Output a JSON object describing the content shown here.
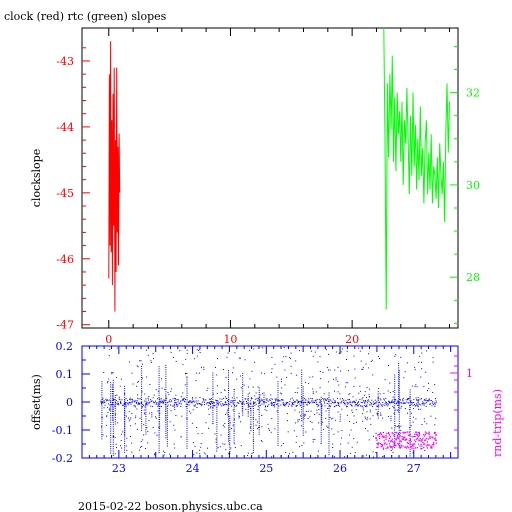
{
  "chart_data": [
    {
      "type": "line",
      "title": "clock (red) rtc (green) slopes",
      "ylabel": "clockslope",
      "x_ticks": [
        "0",
        "10",
        "20"
      ],
      "xlim": [
        -2.2,
        28.7
      ],
      "y_left": {
        "lim": [
          -47.05,
          -42.5
        ],
        "ticks": [
          "-43",
          "-44",
          "-45",
          "-46",
          "-47"
        ],
        "tick_values": [
          -43,
          -44,
          -45,
          -46,
          -47
        ],
        "color": "#ff0000"
      },
      "y_right": {
        "lim": [
          26.9,
          33.4
        ],
        "ticks": [
          "32",
          "30",
          "28"
        ],
        "tick_values": [
          32,
          30,
          28
        ],
        "color": "#00ff00"
      },
      "series": [
        {
          "color": "#ff0000",
          "axis": "left",
          "x": [
            0.0,
            0.05,
            0.1,
            0.15,
            0.2,
            0.25,
            0.3,
            0.35,
            0.4,
            0.45,
            0.5,
            0.55,
            0.6,
            0.65,
            0.7,
            0.75,
            0.8,
            0.85,
            0.9
          ],
          "y": [
            -46.3,
            -43.2,
            -45.8,
            -42.7,
            -45.9,
            -43.9,
            -46.4,
            -43.5,
            -45.5,
            -43.1,
            -46.8,
            -44.2,
            -46.2,
            -43.1,
            -45.6,
            -44.3,
            -46.1,
            -44.1,
            -45.0
          ]
        },
        {
          "color": "#00ff00",
          "axis": "right",
          "x": [
            22.6,
            22.7,
            22.8,
            22.9,
            23.0,
            23.1,
            23.2,
            23.3,
            23.4,
            23.5,
            23.6,
            23.7,
            23.8,
            23.9,
            24.0,
            24.1,
            24.2,
            24.3,
            24.4,
            24.5,
            24.6,
            24.7,
            24.8,
            24.9,
            25.0,
            25.1,
            25.2,
            25.3,
            25.4,
            25.5,
            25.6,
            25.7,
            25.8,
            25.9,
            26.0,
            26.1,
            26.2,
            26.3,
            26.4,
            26.5,
            26.6,
            26.7,
            26.8,
            26.9,
            27.0,
            27.1,
            27.2,
            27.3,
            27.4,
            27.5,
            27.6,
            27.7,
            27.8,
            27.9,
            28.0
          ],
          "y": [
            33.4,
            31.0,
            27.3,
            32.2,
            30.6,
            32.4,
            31.2,
            32.8,
            30.5,
            31.9,
            30.3,
            32.0,
            31.1,
            31.6,
            30.5,
            31.8,
            30.0,
            31.4,
            30.9,
            32.1,
            31.0,
            29.8,
            31.5,
            30.2,
            32.0,
            30.4,
            31.3,
            29.9,
            31.0,
            30.1,
            31.7,
            30.2,
            30.8,
            29.6,
            30.9,
            31.4,
            29.8,
            30.7,
            29.9,
            31.1,
            29.6,
            30.4,
            30.2,
            29.7,
            30.6,
            29.5,
            30.9,
            30.2,
            29.8,
            30.5,
            29.2,
            31.1,
            32.2,
            30.7,
            31.8
          ]
        }
      ]
    },
    {
      "type": "scatter",
      "ylabel": "offset(ms)",
      "y2label": "rnd-trip(ms)",
      "x_ticks": [
        "23",
        "24",
        "25",
        "26",
        "27"
      ],
      "x_tick_values": [
        23,
        24,
        25,
        26,
        27
      ],
      "xlim": [
        22.5,
        27.6
      ],
      "y_left": {
        "lim": [
          -0.2,
          0.2
        ],
        "ticks": [
          "0.2",
          "0.1",
          "0",
          "-0.1",
          "-0.2"
        ],
        "tick_values": [
          0.2,
          0.1,
          0,
          -0.1,
          -0.2
        ],
        "color": "#0000ff"
      },
      "y_right": {
        "ticks": [
          "1"
        ],
        "color": "#ff00ff"
      },
      "series": [
        {
          "color": "#0000ff",
          "x_range": [
            22.75,
            27.3
          ],
          "center": 0.0,
          "band": 0.015,
          "spread": [
            -0.2,
            0.2
          ]
        },
        {
          "color": "#ff00ff",
          "x_range": [
            26.48,
            27.3
          ],
          "y_range": [
            -0.165,
            -0.105
          ]
        }
      ]
    }
  ],
  "footer": "2015-02-22 boson.physics.ubc.ca"
}
